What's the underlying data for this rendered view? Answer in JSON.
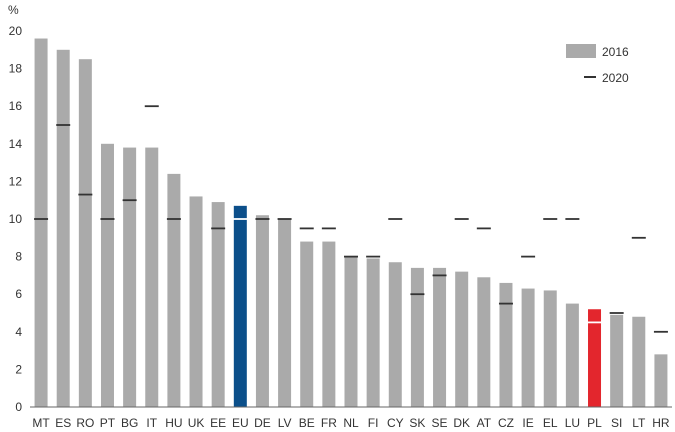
{
  "chart_data": {
    "type": "bar",
    "unit_label": "%",
    "categories": [
      "MT",
      "ES",
      "RO",
      "PT",
      "BG",
      "IT",
      "HU",
      "UK",
      "EE",
      "EU",
      "DE",
      "LV",
      "BE",
      "FR",
      "NL",
      "FI",
      "CY",
      "SK",
      "SE",
      "DK",
      "AT",
      "CZ",
      "IE",
      "EL",
      "LU",
      "PL",
      "SI",
      "LT",
      "HR"
    ],
    "series": [
      {
        "name": "2016",
        "type": "bar",
        "color": "#aaaaaa",
        "values": [
          19.6,
          19.0,
          18.5,
          14.0,
          13.8,
          13.8,
          12.4,
          11.2,
          10.9,
          10.7,
          10.2,
          10.0,
          8.8,
          8.8,
          8.0,
          7.9,
          7.7,
          7.4,
          7.4,
          7.2,
          6.9,
          6.6,
          6.3,
          6.2,
          5.5,
          5.2,
          4.9,
          4.8,
          2.8
        ]
      },
      {
        "name": "2020",
        "type": "marker",
        "color": "#333333",
        "values": [
          10.0,
          15.0,
          11.3,
          10.0,
          11.0,
          16.0,
          10.0,
          null,
          9.5,
          10.0,
          10.0,
          10.0,
          9.5,
          9.5,
          8.0,
          8.0,
          10.0,
          6.0,
          7.0,
          10.0,
          9.5,
          5.5,
          8.0,
          10.0,
          10.0,
          4.5,
          5.0,
          9.0,
          4.0
        ]
      }
    ],
    "highlight_colors": {
      "EU": "#0b4f8a",
      "PL": "#e3262d"
    },
    "ylim": [
      0,
      20
    ],
    "yticks": [
      0,
      2,
      4,
      6,
      8,
      10,
      12,
      14,
      16,
      18,
      20
    ],
    "legend": {
      "position": "top-right",
      "entries": [
        "2016",
        "2020"
      ]
    },
    "grid": false
  }
}
